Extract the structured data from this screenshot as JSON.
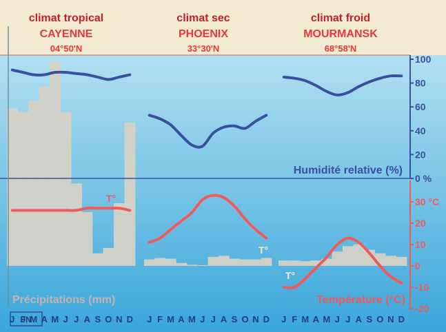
{
  "panels": [
    {
      "climate": "climat tropical",
      "city": "CAYENNE",
      "latitude": "04°50'N"
    },
    {
      "climate": "climat sec",
      "city": "PHOENIX",
      "latitude": "33°30'N"
    },
    {
      "climate": "climat froid",
      "city": "MOURMANSK",
      "latitude": "68°58'N"
    }
  ],
  "labels": {
    "humidity": "Humidité relative (%)",
    "temperature": "Température (°C)",
    "precipitation": "Précipitations (mm)",
    "temp_marker": "T°",
    "logo": "JN"
  },
  "months": [
    "J",
    "F",
    "M",
    "A",
    "M",
    "J",
    "J",
    "A",
    "S",
    "O",
    "N",
    "D"
  ],
  "colors": {
    "sky_top": "#a8dcef",
    "sky_bottom": "#3aa6da",
    "header_bg": "#f3ead2",
    "title": "#c41e2a",
    "humidity": "#3b4fa0",
    "temperature": "#f05a5a",
    "precip": "#d5d2c6"
  },
  "chart_data": [
    {
      "type": "line",
      "title": "climat tropical — CAYENNE 04°50'N",
      "x": [
        "J",
        "F",
        "M",
        "A",
        "M",
        "J",
        "J",
        "A",
        "S",
        "O",
        "N",
        "D"
      ],
      "series": [
        {
          "name": "Humidité relative (%)",
          "axis": "humidity",
          "values": [
            91,
            89,
            87,
            87,
            89,
            89,
            88,
            87,
            85,
            83,
            85,
            87
          ]
        },
        {
          "name": "Température (°C)",
          "axis": "temperature",
          "values": [
            26,
            26,
            26,
            26,
            26,
            26,
            26,
            27,
            27,
            27,
            27,
            26
          ]
        },
        {
          "name": "Précipitations (mm)",
          "type": "bar",
          "values": [
            440,
            430,
            460,
            500,
            570,
            430,
            230,
            150,
            35,
            50,
            175,
            400
          ]
        }
      ]
    },
    {
      "type": "line",
      "title": "climat sec — PHOENIX 33°30'N",
      "x": [
        "J",
        "F",
        "M",
        "A",
        "M",
        "J",
        "J",
        "A",
        "S",
        "O",
        "N",
        "D"
      ],
      "series": [
        {
          "name": "Humidité relative (%)",
          "axis": "humidity",
          "values": [
            53,
            50,
            45,
            36,
            28,
            27,
            38,
            43,
            44,
            42,
            48,
            53
          ]
        },
        {
          "name": "Température (°C)",
          "axis": "temperature",
          "values": [
            11,
            13,
            17,
            21,
            25,
            31,
            33,
            32,
            28,
            22,
            17,
            13
          ]
        },
        {
          "name": "Précipitations (mm)",
          "type": "bar",
          "values": [
            18,
            22,
            20,
            8,
            3,
            2,
            25,
            28,
            20,
            18,
            18,
            22
          ]
        }
      ]
    },
    {
      "type": "line",
      "title": "climat froid — MOURMANSK 68°58'N",
      "x": [
        "J",
        "F",
        "M",
        "A",
        "M",
        "J",
        "J",
        "A",
        "S",
        "O",
        "N",
        "D"
      ],
      "series": [
        {
          "name": "Humidité relative (%)",
          "axis": "humidity",
          "values": [
            85,
            84,
            82,
            78,
            73,
            70,
            72,
            77,
            81,
            84,
            86,
            86
          ]
        },
        {
          "name": "Température (°C)",
          "axis": "temperature",
          "values": [
            -10,
            -10,
            -6,
            -1,
            4,
            10,
            13,
            11,
            6,
            0,
            -5,
            -8
          ]
        },
        {
          "name": "Précipitations (mm)",
          "type": "bar",
          "values": [
            15,
            15,
            13,
            15,
            20,
            40,
            55,
            60,
            45,
            35,
            28,
            25
          ]
        }
      ]
    }
  ],
  "axes": {
    "humidity": {
      "label": "Humidité relative (%)",
      "range": [
        0,
        100
      ],
      "ticks": [
        0,
        20,
        40,
        60,
        80,
        100
      ],
      "tick_labels": [
        "0 %",
        "20",
        "40",
        "60",
        "80",
        "100"
      ]
    },
    "temperature": {
      "label": "Température (°C)",
      "range": [
        -20,
        30
      ],
      "ticks": [
        -20,
        -10,
        0,
        10,
        20,
        30
      ],
      "tick_labels": [
        "-20",
        "-10",
        "0",
        "10",
        "20",
        "30 °C"
      ]
    },
    "precipitation": {
      "label": "Précipitations (mm)"
    }
  }
}
